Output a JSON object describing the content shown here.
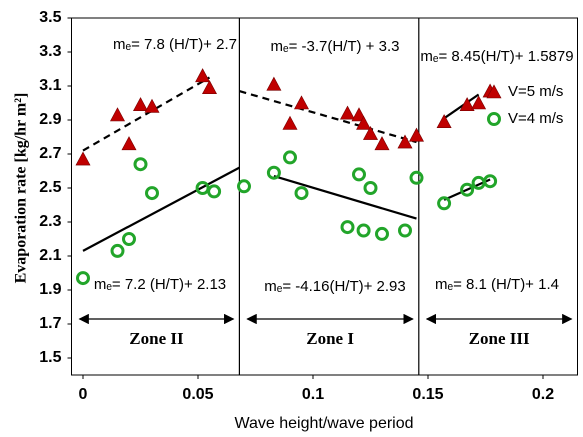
{
  "chart_data": {
    "type": "scatter",
    "x_label": "Wave height/wave period",
    "y_label": "Evaporation rate [kg/hr m²]",
    "xlim": [
      -0.005,
      0.215
    ],
    "xticks": [
      0,
      0.05,
      0.1,
      0.15,
      0.2
    ],
    "ylim": [
      1.4,
      3.5
    ],
    "yticks": [
      1.5,
      1.7,
      1.9,
      2.1,
      2.3,
      2.5,
      2.7,
      2.9,
      3.1,
      3.3,
      3.5
    ],
    "grid": false,
    "legend": "upper right",
    "series": [
      {
        "name": "V=5 m/s",
        "color": "#c00000",
        "marker": "triangle",
        "x": [
          0,
          0.015,
          0.02,
          0.025,
          0.03,
          0.052,
          0.055,
          0.083,
          0.09,
          0.095,
          0.115,
          0.12,
          0.122,
          0.125,
          0.13,
          0.14,
          0.145,
          0.157,
          0.167,
          0.172,
          0.177
        ],
        "values": [
          2.67,
          2.93,
          2.76,
          2.99,
          2.98,
          3.16,
          3.09,
          3.11,
          2.88,
          3.0,
          2.94,
          2.93,
          2.88,
          2.82,
          2.76,
          2.77,
          2.81,
          2.89,
          2.99,
          3.0,
          3.07
        ]
      },
      {
        "name": "V=4 m/s",
        "color": "#22a52a",
        "marker": "circle",
        "x": [
          0,
          0.015,
          0.02,
          0.025,
          0.03,
          0.052,
          0.057,
          0.07,
          0.083,
          0.09,
          0.095,
          0.115,
          0.12,
          0.122,
          0.125,
          0.13,
          0.14,
          0.145,
          0.157,
          0.167,
          0.172,
          0.177
        ],
        "values": [
          1.97,
          2.13,
          2.2,
          2.64,
          2.47,
          2.5,
          2.48,
          2.51,
          2.59,
          2.68,
          2.47,
          2.27,
          2.58,
          2.25,
          2.5,
          2.23,
          2.25,
          2.56,
          2.41,
          2.49,
          2.53,
          2.54
        ]
      }
    ],
    "trend_lines": [
      {
        "style": "dashed",
        "x": [
          0,
          0.055
        ],
        "values": [
          2.72,
          3.15
        ]
      },
      {
        "style": "solid",
        "x": [
          0,
          0.068
        ],
        "values": [
          2.13,
          2.62
        ]
      },
      {
        "style": "dashed",
        "x": [
          0.068,
          0.145
        ],
        "values": [
          3.07,
          2.77
        ]
      },
      {
        "style": "solid",
        "x": [
          0.083,
          0.145
        ],
        "values": [
          2.57,
          2.32
        ]
      },
      {
        "style": "solid",
        "x": [
          0.157,
          0.172
        ],
        "values": [
          2.91,
          3.05
        ]
      },
      {
        "style": "solid",
        "x": [
          0.157,
          0.177
        ],
        "values": [
          2.43,
          2.55
        ]
      }
    ],
    "annotations": [
      "mₑ= 7.8 (H/T)+ 2.7",
      "mₑ= -3.7(H/T) + 3.3",
      "mₑ= 8.45(H/T)+ 1.5879",
      "mₑ= 7.2 (H/T)+ 2.13",
      "mₑ= -4.16(H/T)+ 2.93",
      "mₑ= 8.1 (H/T)+ 1.4"
    ],
    "zone_boundaries": [
      0.068,
      0.146
    ],
    "zones": [
      "Zone II",
      "Zone I",
      "Zone III"
    ]
  }
}
